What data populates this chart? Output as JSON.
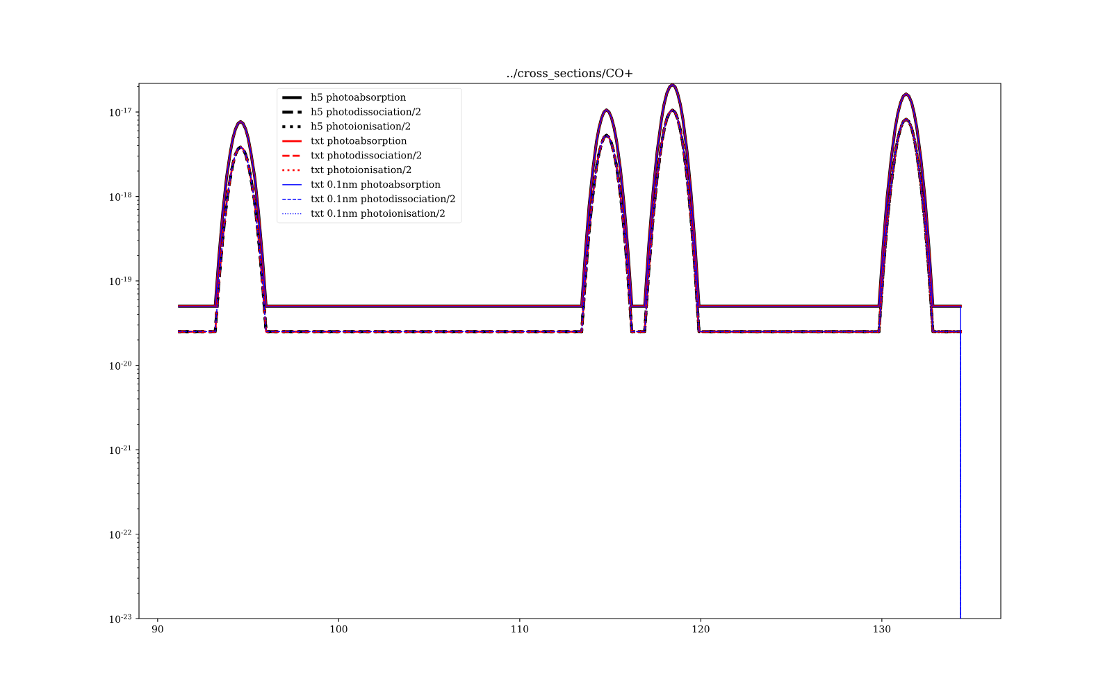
{
  "chart_data": {
    "type": "line",
    "title": "../cross_sections/CO+",
    "log": "y",
    "legend": "top left",
    "xlim": [
      88.97,
      136.57
    ],
    "xticks": [
      90,
      100,
      110,
      120,
      130
    ],
    "ylim": [
      1e-23,
      2.18e-17
    ],
    "yticks": [
      {
        "value": 1e-23,
        "label": "10$^{-23}$"
      },
      {
        "value": 1e-22,
        "label": "10$^{-22}$"
      },
      {
        "value": 1e-21,
        "label": "10$^{-21}$"
      },
      {
        "value": 1e-20,
        "label": "10$^{-20}$"
      },
      {
        "value": 1e-19,
        "label": "10$^{-19}$"
      },
      {
        "value": 1e-18,
        "label": "10$^{-18}$"
      },
      {
        "value": 1e-17,
        "label": "10$^{-17}$"
      }
    ],
    "x": [
      91.13,
      93.18,
      93.39,
      93.6,
      93.81,
      94.02,
      94.16,
      94.3,
      94.44,
      94.58,
      94.72,
      94.86,
      95.0,
      95.14,
      95.36,
      95.57,
      95.78,
      95.99,
      113.42,
      113.63,
      113.83,
      114.04,
      114.24,
      114.38,
      114.52,
      114.65,
      114.79,
      114.93,
      115.07,
      115.21,
      115.35,
      115.56,
      115.77,
      115.98,
      116.19,
      116.9,
      117.13,
      117.36,
      117.59,
      117.82,
      117.97,
      118.12,
      118.28,
      118.43,
      118.58,
      118.72,
      118.87,
      119.02,
      119.24,
      119.46,
      119.68,
      119.9,
      129.84,
      130.07,
      130.29,
      130.52,
      130.74,
      130.89,
      131.04,
      131.19,
      131.34,
      131.49,
      131.64,
      131.78,
      131.93,
      132.15,
      132.38,
      132.6,
      132.82,
      134.41
    ],
    "series": [
      {
        "name": "h5 photoabsorption",
        "color": "#000000",
        "line_style": "solid",
        "values": [
          5e-20,
          5e-20,
          2e-19,
          6.5e-19,
          1.7e-18,
          3.4e-18,
          4.9e-18,
          6.3e-18,
          7.3e-18,
          7.7e-18,
          7.3e-18,
          6.3e-18,
          4.9e-18,
          3.4e-18,
          1.7e-18,
          6.5e-19,
          2e-19,
          5e-20,
          5e-20,
          2.2e-19,
          7.7e-19,
          2.1e-18,
          4.5e-18,
          6.5e-18,
          8.5e-18,
          1e-17,
          1.06e-17,
          1e-17,
          8.5e-18,
          6.5e-18,
          4.5e-18,
          2.1e-18,
          7.7e-19,
          2.2e-19,
          5e-20,
          5e-20,
          2.7e-19,
          1.1e-18,
          3.4e-18,
          8e-18,
          1.23e-17,
          1.66e-17,
          1.99e-17,
          2.11e-17,
          1.99e-17,
          1.66e-17,
          1.23e-17,
          8e-18,
          3.4e-18,
          1.1e-18,
          2.7e-19,
          5e-20,
          5e-20,
          2.5e-19,
          9.7e-19,
          2.86e-18,
          6.5e-18,
          9.8e-18,
          1.3e-17,
          1.55e-17,
          1.64e-17,
          1.55e-17,
          1.3e-17,
          9.8e-18,
          6.5e-18,
          2.86e-18,
          9.7e-19,
          2.5e-19,
          5e-20,
          5e-20
        ]
      },
      {
        "name": "h5 photodissociation/2",
        "color": "#000000",
        "line_style": "dashed",
        "values": [
          2.5e-20,
          2.5e-20,
          1e-19,
          3.25e-19,
          8.5e-19,
          1.7e-18,
          2.45e-18,
          3.15e-18,
          3.65e-18,
          3.85e-18,
          3.65e-18,
          3.15e-18,
          2.45e-18,
          1.7e-18,
          8.5e-19,
          3.25e-19,
          1e-19,
          2.5e-20,
          2.5e-20,
          1.1e-19,
          3.85e-19,
          1.05e-18,
          2.25e-18,
          3.25e-18,
          4.25e-18,
          5e-18,
          5.3e-18,
          5e-18,
          4.25e-18,
          3.25e-18,
          2.25e-18,
          1.05e-18,
          3.85e-19,
          1.1e-19,
          2.5e-20,
          2.5e-20,
          1.35e-19,
          5.5e-19,
          1.7e-18,
          4e-18,
          6.15e-18,
          8.3e-18,
          9.95e-18,
          1.055e-17,
          9.95e-18,
          8.3e-18,
          6.15e-18,
          4e-18,
          1.7e-18,
          5.5e-19,
          1.35e-19,
          2.5e-20,
          2.5e-20,
          1.25e-19,
          4.85e-19,
          1.43e-18,
          3.25e-18,
          4.9e-18,
          6.5e-18,
          7.75e-18,
          8.2e-18,
          7.75e-18,
          6.5e-18,
          4.9e-18,
          3.25e-18,
          1.43e-18,
          4.85e-19,
          1.25e-19,
          2.5e-20,
          2.5e-20
        ]
      },
      {
        "name": "h5 photoionisation/2",
        "color": "#000000",
        "line_style": "dotted",
        "values": [
          2.5e-20,
          2.5e-20,
          1e-19,
          3.25e-19,
          8.5e-19,
          1.7e-18,
          2.45e-18,
          3.15e-18,
          3.65e-18,
          3.85e-18,
          3.65e-18,
          3.15e-18,
          2.45e-18,
          1.7e-18,
          8.5e-19,
          3.25e-19,
          1e-19,
          2.5e-20,
          2.5e-20,
          1.1e-19,
          3.85e-19,
          1.05e-18,
          2.25e-18,
          3.25e-18,
          4.25e-18,
          5e-18,
          5.3e-18,
          5e-18,
          4.25e-18,
          3.25e-18,
          2.25e-18,
          1.05e-18,
          3.85e-19,
          1.1e-19,
          2.5e-20,
          2.5e-20,
          1.35e-19,
          5.5e-19,
          1.7e-18,
          4e-18,
          6.15e-18,
          8.3e-18,
          9.95e-18,
          1.055e-17,
          9.95e-18,
          8.3e-18,
          6.15e-18,
          4e-18,
          1.7e-18,
          5.5e-19,
          1.35e-19,
          2.5e-20,
          2.5e-20,
          1.25e-19,
          4.85e-19,
          1.43e-18,
          3.25e-18,
          4.9e-18,
          6.5e-18,
          7.75e-18,
          8.2e-18,
          7.75e-18,
          6.5e-18,
          4.9e-18,
          3.25e-18,
          1.43e-18,
          4.85e-19,
          1.25e-19,
          2.5e-20,
          2.5e-20
        ]
      },
      {
        "name": "txt photoabsorption",
        "color": "#ff0000",
        "line_style": "solid",
        "values": [
          5e-20,
          5e-20,
          2e-19,
          6.5e-19,
          1.7e-18,
          3.4e-18,
          4.9e-18,
          6.3e-18,
          7.3e-18,
          7.7e-18,
          7.3e-18,
          6.3e-18,
          4.9e-18,
          3.4e-18,
          1.7e-18,
          6.5e-19,
          2e-19,
          5e-20,
          5e-20,
          2.2e-19,
          7.7e-19,
          2.1e-18,
          4.5e-18,
          6.5e-18,
          8.5e-18,
          1e-17,
          1.06e-17,
          1e-17,
          8.5e-18,
          6.5e-18,
          4.5e-18,
          2.1e-18,
          7.7e-19,
          2.2e-19,
          5e-20,
          5e-20,
          2.7e-19,
          1.1e-18,
          3.4e-18,
          8e-18,
          1.23e-17,
          1.66e-17,
          1.99e-17,
          2.11e-17,
          1.99e-17,
          1.66e-17,
          1.23e-17,
          8e-18,
          3.4e-18,
          1.1e-18,
          2.7e-19,
          5e-20,
          5e-20,
          2.5e-19,
          9.7e-19,
          2.86e-18,
          6.5e-18,
          9.8e-18,
          1.3e-17,
          1.55e-17,
          1.64e-17,
          1.55e-17,
          1.3e-17,
          9.8e-18,
          6.5e-18,
          2.86e-18,
          9.7e-19,
          2.5e-19,
          5e-20,
          5e-20
        ]
      },
      {
        "name": "txt photodissociation/2",
        "color": "#ff0000",
        "line_style": "dashed",
        "values": [
          2.5e-20,
          2.5e-20,
          1e-19,
          3.25e-19,
          8.5e-19,
          1.7e-18,
          2.45e-18,
          3.15e-18,
          3.65e-18,
          3.85e-18,
          3.65e-18,
          3.15e-18,
          2.45e-18,
          1.7e-18,
          8.5e-19,
          3.25e-19,
          1e-19,
          2.5e-20,
          2.5e-20,
          1.1e-19,
          3.85e-19,
          1.05e-18,
          2.25e-18,
          3.25e-18,
          4.25e-18,
          5e-18,
          5.3e-18,
          5e-18,
          4.25e-18,
          3.25e-18,
          2.25e-18,
          1.05e-18,
          3.85e-19,
          1.1e-19,
          2.5e-20,
          2.5e-20,
          1.35e-19,
          5.5e-19,
          1.7e-18,
          4e-18,
          6.15e-18,
          8.3e-18,
          9.95e-18,
          1.055e-17,
          9.95e-18,
          8.3e-18,
          6.15e-18,
          4e-18,
          1.7e-18,
          5.5e-19,
          1.35e-19,
          2.5e-20,
          2.5e-20,
          1.25e-19,
          4.85e-19,
          1.43e-18,
          3.25e-18,
          4.9e-18,
          6.5e-18,
          7.75e-18,
          8.2e-18,
          7.75e-18,
          6.5e-18,
          4.9e-18,
          3.25e-18,
          1.43e-18,
          4.85e-19,
          1.25e-19,
          2.5e-20,
          2.5e-20
        ]
      },
      {
        "name": "txt photoionisation/2",
        "color": "#ff0000",
        "line_style": "dotted",
        "values": [
          2.5e-20,
          2.5e-20,
          1e-19,
          3.25e-19,
          8.5e-19,
          1.7e-18,
          2.45e-18,
          3.15e-18,
          3.65e-18,
          3.85e-18,
          3.65e-18,
          3.15e-18,
          2.45e-18,
          1.7e-18,
          8.5e-19,
          3.25e-19,
          1e-19,
          2.5e-20,
          2.5e-20,
          1.1e-19,
          3.85e-19,
          1.05e-18,
          2.25e-18,
          3.25e-18,
          4.25e-18,
          5e-18,
          5.3e-18,
          5e-18,
          4.25e-18,
          3.25e-18,
          2.25e-18,
          1.05e-18,
          3.85e-19,
          1.1e-19,
          2.5e-20,
          2.5e-20,
          1.35e-19,
          5.5e-19,
          1.7e-18,
          4e-18,
          6.15e-18,
          8.3e-18,
          9.95e-18,
          1.055e-17,
          9.95e-18,
          8.3e-18,
          6.15e-18,
          4e-18,
          1.7e-18,
          5.5e-19,
          1.35e-19,
          2.5e-20,
          2.5e-20,
          1.25e-19,
          4.85e-19,
          1.43e-18,
          3.25e-18,
          4.9e-18,
          6.5e-18,
          7.75e-18,
          8.2e-18,
          7.75e-18,
          6.5e-18,
          4.9e-18,
          3.25e-18,
          1.43e-18,
          4.85e-19,
          1.25e-19,
          2.5e-20,
          2.5e-20
        ]
      },
      {
        "name": "txt 0.1nm photoabsorption",
        "color": "#0000ff",
        "line_style": "solid",
        "x": [
          91.13,
          93.18,
          93.39,
          93.6,
          93.81,
          94.02,
          94.16,
          94.3,
          94.44,
          94.58,
          94.72,
          94.86,
          95.0,
          95.14,
          95.36,
          95.57,
          95.78,
          95.99,
          113.42,
          113.63,
          113.83,
          114.04,
          114.24,
          114.38,
          114.52,
          114.65,
          114.79,
          114.93,
          115.07,
          115.21,
          115.35,
          115.56,
          115.77,
          115.98,
          116.19,
          116.9,
          117.13,
          117.36,
          117.59,
          117.82,
          117.97,
          118.12,
          118.28,
          118.43,
          118.58,
          118.72,
          118.87,
          119.02,
          119.24,
          119.46,
          119.68,
          119.9,
          129.84,
          130.07,
          130.29,
          130.52,
          130.74,
          130.89,
          131.04,
          131.19,
          131.34,
          131.49,
          131.64,
          131.78,
          131.93,
          132.15,
          132.38,
          132.6,
          132.82,
          134.35,
          134.35
        ],
        "values": [
          5e-20,
          5e-20,
          2e-19,
          6.5e-19,
          1.7e-18,
          3.4e-18,
          4.9e-18,
          6.3e-18,
          7.3e-18,
          7.7e-18,
          7.3e-18,
          6.3e-18,
          4.9e-18,
          3.4e-18,
          1.7e-18,
          6.5e-19,
          2e-19,
          5e-20,
          5e-20,
          2.2e-19,
          7.7e-19,
          2.1e-18,
          4.5e-18,
          6.5e-18,
          8.5e-18,
          1e-17,
          1.06e-17,
          1e-17,
          8.5e-18,
          6.5e-18,
          4.5e-18,
          2.1e-18,
          7.7e-19,
          2.2e-19,
          5e-20,
          5e-20,
          2.7e-19,
          1.1e-18,
          3.4e-18,
          8e-18,
          1.23e-17,
          1.66e-17,
          1.99e-17,
          2.11e-17,
          1.99e-17,
          1.66e-17,
          1.23e-17,
          8e-18,
          3.4e-18,
          1.1e-18,
          2.7e-19,
          5e-20,
          5e-20,
          2.5e-19,
          9.7e-19,
          2.86e-18,
          6.5e-18,
          9.8e-18,
          1.3e-17,
          1.55e-17,
          1.64e-17,
          1.55e-17,
          1.3e-17,
          9.8e-18,
          6.5e-18,
          2.86e-18,
          9.7e-19,
          2.5e-19,
          5e-20,
          5e-20,
          1e-23
        ]
      },
      {
        "name": "txt 0.1nm photodissociation/2",
        "color": "#0000ff",
        "line_style": "dashed",
        "x": [
          91.13,
          93.18,
          93.39,
          93.6,
          93.81,
          94.02,
          94.16,
          94.3,
          94.44,
          94.58,
          94.72,
          94.86,
          95.0,
          95.14,
          95.36,
          95.57,
          95.78,
          95.99,
          113.42,
          113.63,
          113.83,
          114.04,
          114.24,
          114.38,
          114.52,
          114.65,
          114.79,
          114.93,
          115.07,
          115.21,
          115.35,
          115.56,
          115.77,
          115.98,
          116.19,
          116.9,
          117.13,
          117.36,
          117.59,
          117.82,
          117.97,
          118.12,
          118.28,
          118.43,
          118.58,
          118.72,
          118.87,
          119.02,
          119.24,
          119.46,
          119.68,
          119.9,
          129.84,
          130.07,
          130.29,
          130.52,
          130.74,
          130.89,
          131.04,
          131.19,
          131.34,
          131.49,
          131.64,
          131.78,
          131.93,
          132.15,
          132.38,
          132.6,
          132.82,
          134.35,
          134.35
        ],
        "values": [
          2.5e-20,
          2.5e-20,
          1e-19,
          3.25e-19,
          8.5e-19,
          1.7e-18,
          2.45e-18,
          3.15e-18,
          3.65e-18,
          3.85e-18,
          3.65e-18,
          3.15e-18,
          2.45e-18,
          1.7e-18,
          8.5e-19,
          3.25e-19,
          1e-19,
          2.5e-20,
          2.5e-20,
          1.1e-19,
          3.85e-19,
          1.05e-18,
          2.25e-18,
          3.25e-18,
          4.25e-18,
          5e-18,
          5.3e-18,
          5e-18,
          4.25e-18,
          3.25e-18,
          2.25e-18,
          1.05e-18,
          3.85e-19,
          1.1e-19,
          2.5e-20,
          2.5e-20,
          1.35e-19,
          5.5e-19,
          1.7e-18,
          4e-18,
          6.15e-18,
          8.3e-18,
          9.95e-18,
          1.055e-17,
          9.95e-18,
          8.3e-18,
          6.15e-18,
          4e-18,
          1.7e-18,
          5.5e-19,
          1.35e-19,
          2.5e-20,
          2.5e-20,
          1.25e-19,
          4.85e-19,
          1.43e-18,
          3.25e-18,
          4.9e-18,
          6.5e-18,
          7.75e-18,
          8.2e-18,
          7.75e-18,
          6.5e-18,
          4.9e-18,
          3.25e-18,
          1.43e-18,
          4.85e-19,
          1.25e-19,
          2.5e-20,
          2.5e-20,
          1e-23
        ]
      },
      {
        "name": "txt 0.1nm photoionisation/2",
        "color": "#0000ff",
        "line_style": "dotted",
        "x": [
          91.13,
          93.18,
          93.39,
          93.6,
          93.81,
          94.02,
          94.16,
          94.3,
          94.44,
          94.58,
          94.72,
          94.86,
          95.0,
          95.14,
          95.36,
          95.57,
          95.78,
          95.99,
          113.42,
          113.63,
          113.83,
          114.04,
          114.24,
          114.38,
          114.52,
          114.65,
          114.79,
          114.93,
          115.07,
          115.21,
          115.35,
          115.56,
          115.77,
          115.98,
          116.19,
          116.9,
          117.13,
          117.36,
          117.59,
          117.82,
          117.97,
          118.12,
          118.28,
          118.43,
          118.58,
          118.72,
          118.87,
          119.02,
          119.24,
          119.46,
          119.68,
          119.9,
          129.84,
          130.07,
          130.29,
          130.52,
          130.74,
          130.89,
          131.04,
          131.19,
          131.34,
          131.49,
          131.64,
          131.78,
          131.93,
          132.15,
          132.38,
          132.6,
          132.82,
          134.35,
          134.35
        ],
        "values": [
          2.5e-20,
          2.5e-20,
          1e-19,
          3.25e-19,
          8.5e-19,
          1.7e-18,
          2.45e-18,
          3.15e-18,
          3.65e-18,
          3.85e-18,
          3.65e-18,
          3.15e-18,
          2.45e-18,
          1.7e-18,
          8.5e-19,
          3.25e-19,
          1e-19,
          2.5e-20,
          2.5e-20,
          1.1e-19,
          3.85e-19,
          1.05e-18,
          2.25e-18,
          3.25e-18,
          4.25e-18,
          5e-18,
          5.3e-18,
          5e-18,
          4.25e-18,
          3.25e-18,
          2.25e-18,
          1.05e-18,
          3.85e-19,
          1.1e-19,
          2.5e-20,
          2.5e-20,
          1.35e-19,
          5.5e-19,
          1.7e-18,
          4e-18,
          6.15e-18,
          8.3e-18,
          9.95e-18,
          1.055e-17,
          9.95e-18,
          8.3e-18,
          6.15e-18,
          4e-18,
          1.7e-18,
          5.5e-19,
          1.35e-19,
          2.5e-20,
          2.5e-20,
          1.25e-19,
          4.85e-19,
          1.43e-18,
          3.25e-18,
          4.9e-18,
          6.5e-18,
          7.75e-18,
          8.2e-18,
          7.75e-18,
          6.5e-18,
          4.9e-18,
          3.25e-18,
          1.43e-18,
          4.85e-19,
          1.25e-19,
          2.5e-20,
          2.5e-20,
          1e-23
        ]
      }
    ]
  }
}
